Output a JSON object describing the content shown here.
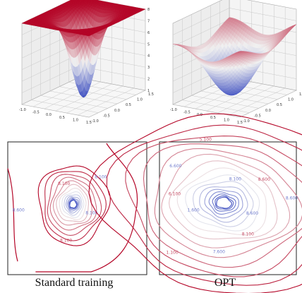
{
  "figure": {
    "captions": [
      "Standard training",
      "OPT"
    ]
  },
  "chart_data": [
    {
      "type": "surface",
      "panel": "top-left",
      "zlim": [
        1,
        8
      ],
      "z_ticks": [
        "1",
        "2",
        "3",
        "4",
        "5",
        "6",
        "7",
        "8"
      ],
      "x_ticks": [
        "-1.0",
        "-0.5",
        "0.0",
        "0.5",
        "1.0",
        "1.5"
      ],
      "y_ticks": [
        "-1.0",
        "-0.5",
        "0.0",
        "0.5",
        "1.0",
        "1.5"
      ],
      "colormap": [
        "#3b4cc0",
        "#f0f0f0",
        "#b40426"
      ],
      "surface": {
        "plateau": 8.0,
        "min": 1.0,
        "basin_width": 0.28
      },
      "grid": true
    },
    {
      "type": "surface",
      "panel": "top-right",
      "zlim": [
        1,
        8
      ],
      "x_ticks": [
        "-1.0",
        "-0.5",
        "0.0",
        "0.5",
        "1.0",
        "1.5"
      ],
      "y_ticks": [
        "-1.0",
        "-0.5",
        "0.0",
        "0.5",
        "1.0",
        "1.5"
      ],
      "colormap": [
        "#3b4cc0",
        "#f0f0f0",
        "#b40426"
      ],
      "surface": {
        "plateau": 6.5,
        "min": 1.0,
        "basin_width": 0.55
      },
      "grid": true
    },
    {
      "type": "contour",
      "panel": "bottom-left",
      "levels": 14,
      "level_labels": [
        "8.100",
        "8.100",
        "8.600",
        "8.100",
        "8.100"
      ],
      "colormap": [
        "#3b4cc0",
        "#f0f0f0",
        "#b40426"
      ]
    },
    {
      "type": "contour",
      "panel": "bottom-right",
      "levels": 16,
      "level_labels": [
        "8.600",
        "8.100",
        "7.600",
        "1.100",
        "1.600",
        "6.100",
        "6.600",
        "5.100",
        "8.100",
        "8.600",
        "8.600"
      ],
      "colormap": [
        "#3b4cc0",
        "#f0f0f0",
        "#b40426"
      ]
    }
  ]
}
